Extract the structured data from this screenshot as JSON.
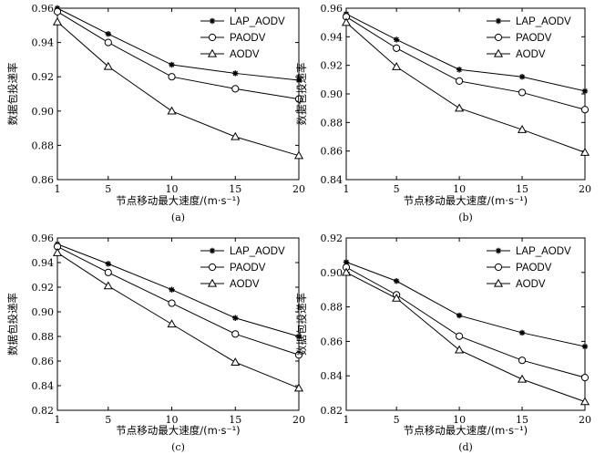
{
  "chart_data": [
    {
      "type": "line",
      "caption": "(a)",
      "xlabel": "节点移动最大速度/(m·s⁻¹)",
      "ylabel": "数据包投递率",
      "x": [
        1,
        5,
        10,
        15,
        20
      ],
      "xticks": [
        "1",
        "5",
        "10",
        "15",
        "20"
      ],
      "ylim": [
        0.86,
        0.96
      ],
      "yticks": [
        "0.86",
        "0.88",
        "0.90",
        "0.92",
        "0.94",
        "0.96"
      ],
      "legend_position": "top-right",
      "series": [
        {
          "name": "LAP_AODV",
          "marker": "star",
          "values": [
            0.96,
            0.945,
            0.927,
            0.922,
            0.918
          ]
        },
        {
          "name": "PAODV",
          "marker": "circle",
          "values": [
            0.958,
            0.94,
            0.92,
            0.913,
            0.907
          ]
        },
        {
          "name": "AODV",
          "marker": "triangle",
          "values": [
            0.952,
            0.926,
            0.9,
            0.885,
            0.874
          ]
        }
      ]
    },
    {
      "type": "line",
      "caption": "(b)",
      "xlabel": "节点移动最大速度/(m·s⁻¹)",
      "ylabel": "数据包投递率",
      "x": [
        1,
        5,
        10,
        15,
        20
      ],
      "xticks": [
        "1",
        "5",
        "10",
        "15",
        "20"
      ],
      "ylim": [
        0.84,
        0.96
      ],
      "yticks": [
        "0.84",
        "0.86",
        "0.88",
        "0.90",
        "0.92",
        "0.94",
        "0.96"
      ],
      "legend_position": "top-right",
      "series": [
        {
          "name": "LAP_AODV",
          "marker": "star",
          "values": [
            0.956,
            0.938,
            0.917,
            0.912,
            0.902
          ]
        },
        {
          "name": "PAODV",
          "marker": "circle",
          "values": [
            0.954,
            0.932,
            0.909,
            0.901,
            0.889
          ]
        },
        {
          "name": "AODV",
          "marker": "triangle",
          "values": [
            0.95,
            0.919,
            0.89,
            0.875,
            0.859
          ]
        }
      ]
    },
    {
      "type": "line",
      "caption": "(c)",
      "xlabel": "节点移动最大速度/(m·s⁻¹)",
      "ylabel": "数据包投递率",
      "x": [
        1,
        5,
        10,
        15,
        20
      ],
      "xticks": [
        "1",
        "5",
        "10",
        "15",
        "20"
      ],
      "ylim": [
        0.82,
        0.96
      ],
      "yticks": [
        "0.82",
        "0.84",
        "0.86",
        "0.88",
        "0.90",
        "0.92",
        "0.94",
        "0.96"
      ],
      "legend_position": "top-right",
      "series": [
        {
          "name": "LAP_AODV",
          "marker": "star",
          "values": [
            0.955,
            0.939,
            0.918,
            0.895,
            0.88
          ]
        },
        {
          "name": "PAODV",
          "marker": "circle",
          "values": [
            0.953,
            0.932,
            0.907,
            0.882,
            0.865
          ]
        },
        {
          "name": "AODV",
          "marker": "triangle",
          "values": [
            0.948,
            0.921,
            0.89,
            0.859,
            0.838
          ]
        }
      ]
    },
    {
      "type": "line",
      "caption": "(d)",
      "xlabel": "节点移动最大速度/(m·s⁻¹)",
      "ylabel": "数据包投递率",
      "x": [
        1,
        5,
        10,
        15,
        20
      ],
      "xticks": [
        "1",
        "5",
        "10",
        "15",
        "20"
      ],
      "ylim": [
        0.82,
        0.92
      ],
      "yticks": [
        "0.82",
        "0.84",
        "0.86",
        "0.88",
        "0.90",
        "0.92"
      ],
      "legend_position": "top-right",
      "series": [
        {
          "name": "LAP_AODV",
          "marker": "star",
          "values": [
            0.906,
            0.895,
            0.875,
            0.865,
            0.857
          ]
        },
        {
          "name": "PAODV",
          "marker": "circle",
          "values": [
            0.903,
            0.887,
            0.863,
            0.849,
            0.839
          ]
        },
        {
          "name": "AODV",
          "marker": "triangle",
          "values": [
            0.9,
            0.885,
            0.855,
            0.838,
            0.825
          ]
        }
      ]
    }
  ]
}
